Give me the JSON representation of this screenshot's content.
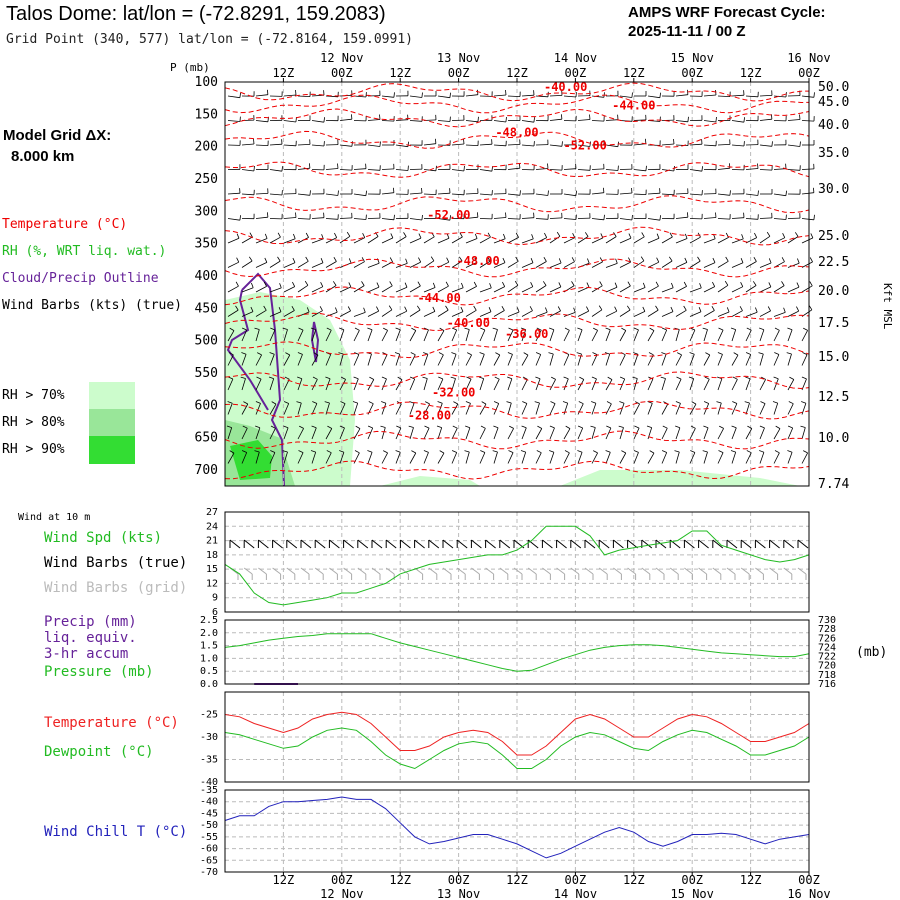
{
  "header": {
    "title": "Talos Dome:  lat/lon = (-72.8291, 159.2083)",
    "subtitle": "Grid Point (340, 577) lat/lon = (-72.8164, 159.0991)",
    "cycle_line1": "AMPS WRF Forecast Cycle:",
    "cycle_line2": "2025-11-11 / 00  Z",
    "grid_label": "Model Grid ΔX:",
    "grid_value": "8.000 km"
  },
  "legend": {
    "temperature": "Temperature (°C)",
    "rh": "RH (%, WRT liq. wat.)",
    "cloud": "Cloud/Precip Outline",
    "wind_barbs": "Wind Barbs (kts) (true)",
    "rh70": "RH > 70%",
    "rh80": "RH > 80%",
    "rh90": "RH > 90%",
    "colors": {
      "rh70": "#ccfccc",
      "rh80": "#99e699",
      "rh90": "#33dd33",
      "temperature": "#ee0000",
      "cloud": "#662299"
    }
  },
  "time_axis": {
    "top_hours": [
      "12Z",
      "00Z",
      "12Z",
      "00Z",
      "12Z",
      "00Z",
      "12Z",
      "00Z",
      "12Z",
      "00Z"
    ],
    "top_dates": [
      "12 Nov",
      "13 Nov",
      "14 Nov",
      "15 Nov",
      "16 Nov"
    ],
    "bottom_hours": [
      "12Z",
      "00Z",
      "12Z",
      "00Z",
      "12Z",
      "00Z",
      "12Z",
      "00Z",
      "12Z",
      "00Z"
    ],
    "bottom_dates": [
      "12 Nov",
      "13 Nov",
      "14 Nov",
      "15 Nov",
      "16 Nov"
    ]
  },
  "chart_data": [
    {
      "type": "line",
      "panel": "vertical-cross-section",
      "xlabel": "",
      "ylabel": "P (mb)",
      "ylabel_right": "Kft MSL",
      "x_hours": [
        0,
        120
      ],
      "pressure_ticks": [
        100,
        150,
        200,
        250,
        300,
        350,
        400,
        450,
        500,
        550,
        600,
        650,
        700
      ],
      "height_ticks": [
        "50.0",
        "45.0",
        "40.0",
        "35.0",
        "30.0",
        "25.0",
        "22.5",
        "20.0",
        "17.5",
        "15.0",
        "12.5",
        "10.0",
        "7.74"
      ],
      "temperature_contour_labels": [
        {
          "label": "-40.00",
          "hour": 70,
          "p": 108
        },
        {
          "label": "-44.00",
          "hour": 84,
          "p": 136
        },
        {
          "label": "-48.00",
          "hour": 60,
          "p": 178
        },
        {
          "label": "-52.00",
          "hour": 74,
          "p": 198
        },
        {
          "label": "-52.00",
          "hour": 46,
          "p": 306
        },
        {
          "label": "-48.00",
          "hour": 52,
          "p": 377
        },
        {
          "label": "-44.00",
          "hour": 44,
          "p": 434
        },
        {
          "label": "-40.00",
          "hour": 50,
          "p": 473
        },
        {
          "label": "-36.00",
          "hour": 62,
          "p": 490
        },
        {
          "label": "-32.00",
          "hour": 47,
          "p": 580
        },
        {
          "label": "-28.00",
          "hour": 42,
          "p": 616
        }
      ]
    },
    {
      "type": "line",
      "panel": "wind-10m",
      "title": "Wind at 10 m",
      "series": [
        {
          "name": "Wind Spd (kts)",
          "color": "#22bb22",
          "x": [
            0,
            3,
            6,
            9,
            12,
            15,
            18,
            21,
            24,
            27,
            30,
            33,
            36,
            39,
            42,
            45,
            48,
            51,
            54,
            57,
            60,
            63,
            66,
            69,
            72,
            75,
            78,
            81,
            84,
            87,
            90,
            93,
            96,
            99,
            102,
            105,
            108,
            111,
            114,
            117,
            120
          ],
          "values": [
            16,
            14,
            10,
            8,
            7.5,
            8,
            8.5,
            9,
            10,
            10,
            11,
            12,
            14,
            15,
            16,
            16.5,
            17,
            17.5,
            18,
            18,
            19,
            21,
            24,
            24,
            24,
            22,
            18,
            19,
            19.5,
            20,
            20.5,
            21,
            23,
            23,
            20,
            19,
            18,
            17,
            16.5,
            17,
            18
          ]
        }
      ],
      "legend_extra": [
        "Wind Barbs (true)",
        "Wind Barbs (grid)"
      ],
      "ylim": [
        6,
        27
      ],
      "yticks": [
        6,
        9,
        12,
        15,
        18,
        21,
        24,
        27
      ]
    },
    {
      "type": "line",
      "panel": "precip-pressure",
      "series": [
        {
          "name": "Precip (mm) liq. equiv. 3-hr accum",
          "color": "#662299",
          "x": [
            6,
            9,
            12,
            15
          ],
          "values": [
            0,
            0,
            0,
            0
          ]
        },
        {
          "name": "Pressure (mb)",
          "color": "#22bb22",
          "x": [
            0,
            3,
            6,
            9,
            12,
            15,
            18,
            21,
            24,
            27,
            30,
            33,
            36,
            39,
            42,
            45,
            48,
            51,
            54,
            57,
            60,
            63,
            66,
            69,
            72,
            75,
            78,
            81,
            84,
            87,
            90,
            93,
            96,
            99,
            102,
            105,
            108,
            111,
            114,
            117,
            120
          ],
          "values": [
            724.0,
            724.4,
            725.0,
            725.6,
            726.0,
            726.4,
            726.6,
            727.0,
            727.0,
            727.0,
            727.0,
            726.0,
            725.0,
            724.2,
            723.4,
            722.6,
            721.8,
            721.0,
            720.2,
            719.4,
            718.8,
            719.0,
            720.2,
            721.4,
            722.4,
            723.4,
            724.0,
            724.4,
            724.6,
            724.6,
            724.4,
            724.0,
            723.6,
            723.2,
            722.8,
            722.6,
            722.4,
            722.2,
            722.0,
            722.0,
            722.6
          ]
        }
      ],
      "ylim_left": [
        0,
        2.5
      ],
      "yticks_left": [
        "0.0",
        "0.5",
        "1.0",
        "1.5",
        "2.0",
        "2.5"
      ],
      "ylim_right": [
        716,
        730
      ],
      "yticks_right": [
        "730",
        "728",
        "726",
        "724",
        "722",
        "720",
        "718",
        "716"
      ],
      "ylabel_right": "(mb)"
    },
    {
      "type": "line",
      "panel": "temperature-dewpoint",
      "series": [
        {
          "name": "Temperature (°C)",
          "color": "#ee2222",
          "x": [
            0,
            3,
            6,
            9,
            12,
            15,
            18,
            21,
            24,
            27,
            30,
            33,
            36,
            39,
            42,
            45,
            48,
            51,
            54,
            57,
            60,
            63,
            66,
            69,
            72,
            75,
            78,
            81,
            84,
            87,
            90,
            93,
            96,
            99,
            102,
            105,
            108,
            111,
            114,
            117,
            120
          ],
          "values": [
            -25,
            -25.5,
            -27,
            -28,
            -29,
            -28,
            -26,
            -25,
            -24.5,
            -25,
            -27,
            -30,
            -33,
            -33,
            -32,
            -30,
            -29,
            -28.5,
            -29,
            -31,
            -34,
            -34,
            -32,
            -29,
            -26,
            -25,
            -26,
            -28,
            -30,
            -30,
            -28,
            -26,
            -25,
            -25.5,
            -27,
            -29,
            -31,
            -31,
            -30,
            -29,
            -27
          ]
        },
        {
          "name": "Dewpoint (°C)",
          "color": "#22bb22",
          "x": [
            0,
            3,
            6,
            9,
            12,
            15,
            18,
            21,
            24,
            27,
            30,
            33,
            36,
            39,
            42,
            45,
            48,
            51,
            54,
            57,
            60,
            63,
            66,
            69,
            72,
            75,
            78,
            81,
            84,
            87,
            90,
            93,
            96,
            99,
            102,
            105,
            108,
            111,
            114,
            117,
            120
          ],
          "values": [
            -29,
            -29.5,
            -30.5,
            -31.5,
            -32.5,
            -32,
            -30,
            -28.5,
            -28,
            -28.5,
            -31,
            -34,
            -36,
            -37,
            -35,
            -33,
            -31.5,
            -31,
            -31.5,
            -34,
            -37,
            -37,
            -35,
            -32,
            -30,
            -29,
            -29.5,
            -31,
            -32.5,
            -33,
            -31,
            -29.5,
            -28.5,
            -29,
            -30.5,
            -32,
            -34,
            -34,
            -33,
            -32,
            -30
          ]
        }
      ],
      "ylim": [
        -40,
        -20
      ],
      "yticks": [
        -40,
        -35,
        -30,
        -25
      ]
    },
    {
      "type": "line",
      "panel": "wind-chill",
      "series": [
        {
          "name": "Wind Chill T (°C)",
          "color": "#2222bb",
          "x": [
            0,
            3,
            6,
            9,
            12,
            15,
            18,
            21,
            24,
            27,
            30,
            33,
            36,
            39,
            42,
            45,
            48,
            51,
            54,
            57,
            60,
            63,
            66,
            69,
            72,
            75,
            78,
            81,
            84,
            87,
            90,
            93,
            96,
            99,
            102,
            105,
            108,
            111,
            114,
            117,
            120
          ],
          "values": [
            -48,
            -46,
            -46,
            -42,
            -40,
            -40,
            -39.5,
            -39,
            -38,
            -39,
            -39,
            -43,
            -49,
            -55,
            -58,
            -57,
            -55.5,
            -54,
            -54,
            -56,
            -58,
            -61,
            -64,
            -62,
            -59,
            -56,
            -53,
            -51,
            -53,
            -57,
            -59,
            -57,
            -54,
            -54,
            -53.5,
            -54,
            -56,
            -58,
            -56,
            -55,
            -54
          ]
        }
      ],
      "ylim": [
        -70,
        -35
      ],
      "yticks": [
        -70,
        -65,
        -60,
        -55,
        -50,
        -45,
        -40,
        -35
      ]
    }
  ]
}
